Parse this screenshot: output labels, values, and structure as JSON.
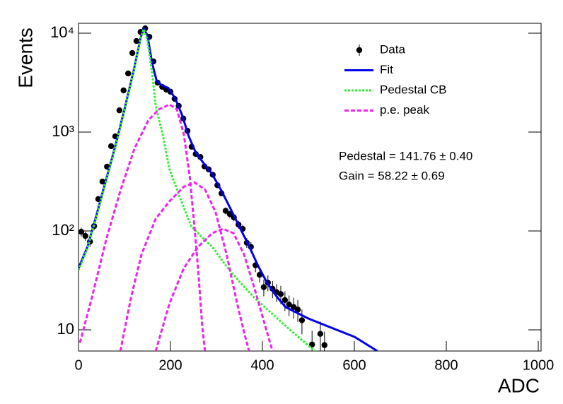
{
  "chart_data": {
    "type": "line",
    "xlabel": "ADC",
    "ylabel": "Events",
    "xlim": [
      0,
      1000
    ],
    "xticks": [
      0,
      200,
      400,
      600,
      800,
      1000
    ],
    "ylim": [
      6.1,
      12600
    ],
    "log_y": true,
    "yticks": [
      10,
      {
        "value": 100,
        "label": "10²"
      },
      {
        "value": 1000,
        "label": "10³"
      },
      {
        "value": 10000,
        "label": "10⁴"
      }
    ],
    "legend": "upper right",
    "annotations": [
      "Pedestal = 141.76 ± 0.40",
      "Gain = 58.22 ± 0.69"
    ],
    "series": [
      {
        "name": "Data",
        "style": "points",
        "color": "#000000",
        "x": [
          6,
          15,
          25,
          34,
          43,
          52,
          62,
          71,
          80,
          89,
          98,
          108,
          117,
          126,
          135,
          145,
          154,
          163,
          172,
          182,
          191,
          200,
          209,
          218,
          228,
          237,
          246,
          255,
          265,
          274,
          283,
          292,
          302,
          311,
          320,
          329,
          338,
          348,
          357,
          366,
          375,
          385,
          394,
          403,
          412,
          422,
          431,
          440,
          449,
          458,
          468,
          477,
          486,
          508,
          526,
          535
        ],
        "values": [
          98,
          89,
          78,
          112,
          210,
          316,
          447,
          720,
          905,
          1660,
          2640,
          3920,
          6310,
          8340,
          10300,
          11200,
          9200,
          5190,
          3160,
          2870,
          2690,
          2560,
          2170,
          1840,
          1370,
          1030,
          710,
          600,
          560,
          450,
          420,
          370,
          290,
          240,
          160,
          148,
          137,
          116,
          105,
          76,
          69,
          45,
          36,
          27,
          30,
          26,
          24,
          23,
          20,
          18,
          17,
          16,
          12.5,
          7.1,
          9.1,
          7.0
        ],
        "errors": [
          9.9,
          9.4,
          8.8,
          10.6,
          14.5,
          17.8,
          21.1,
          26.8,
          30.1,
          40.7,
          51.4,
          62.6,
          79.4,
          91.3,
          101.5,
          105.8,
          95.9,
          72,
          56.2,
          53.6,
          51.9,
          50.6,
          46.6,
          42.9,
          37,
          32.1,
          26.6,
          24.5,
          23.7,
          21.2,
          20.5,
          19.2,
          17,
          15.5,
          12.6,
          12.2,
          11.7,
          10.8,
          10.2,
          8.7,
          8.3,
          6.7,
          6,
          5.2,
          5.5,
          5.1,
          4.9,
          4.8,
          4.5,
          4.2,
          4.1,
          4,
          3.5,
          2.7,
          3,
          2.6
        ]
      },
      {
        "name": "Fit",
        "style": "solid",
        "color": "#0000ee",
        "x": [
          0,
          20,
          40,
          60,
          80,
          100,
          120,
          135,
          142,
          150,
          160,
          170,
          180,
          195,
          210,
          225,
          240,
          255,
          270,
          290,
          310,
          330,
          350,
          370,
          390,
          410,
          430,
          450,
          500,
          550,
          600,
          650
        ],
        "values": [
          42,
          70,
          150,
          330,
          720,
          1700,
          4200,
          9000,
          11200,
          9500,
          5000,
          3300,
          3000,
          2800,
          2200,
          1500,
          900,
          620,
          500,
          380,
          260,
          170,
          110,
          72,
          45,
          30,
          22,
          17,
          13,
          10.5,
          8.5,
          6.1
        ]
      },
      {
        "name": "Pedestal CB",
        "style": "dotted",
        "color": "#33ee33",
        "x": [
          0,
          20,
          40,
          60,
          80,
          100,
          120,
          135,
          142,
          150,
          160,
          168,
          183,
          198,
          221,
          245,
          270,
          291,
          320,
          352,
          383,
          414,
          460,
          514
        ],
        "values": [
          40,
          68,
          145,
          320,
          700,
          1650,
          4100,
          8900,
          11000,
          8500,
          4000,
          1840,
          950,
          420,
          215,
          112,
          85,
          69,
          45,
          30,
          21,
          15.6,
          10,
          6.1
        ]
      },
      {
        "name": "p.e. peak",
        "style": "dashed",
        "color": "#ee22ee",
        "x": [
          3,
          29,
          60,
          91,
          122,
          152,
          175,
          198,
          214,
          229,
          242,
          252,
          260,
          269,
          275
        ],
        "values": [
          7.4,
          21,
          81,
          255,
          685,
          1320,
          1700,
          1900,
          1700,
          950,
          355,
          112,
          42,
          11,
          6.1
        ]
      },
      {
        "style": "dashed",
        "color": "#ee22ee",
        "x": [
          91,
          114,
          137,
          168,
          198,
          229,
          252,
          275,
          298,
          322,
          345,
          360,
          371
        ],
        "values": [
          6.1,
          21,
          58,
          133,
          200,
          280,
          310,
          263,
          156,
          58,
          18.5,
          9.5,
          6.1
        ]
      },
      {
        "style": "dashed",
        "color": "#ee22ee",
        "x": [
          168,
          198,
          229,
          260,
          291,
          314,
          337,
          360,
          383,
          406,
          422
        ],
        "values": [
          6.1,
          18.5,
          42,
          69,
          95,
          105,
          95,
          58,
          26,
          11,
          6.1
        ]
      }
    ]
  }
}
